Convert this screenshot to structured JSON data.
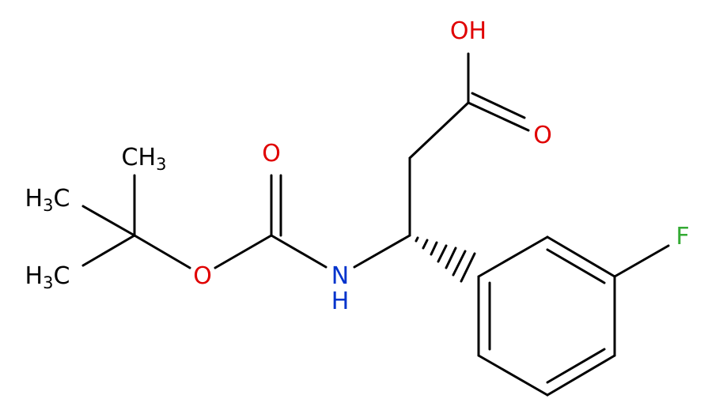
{
  "atoms": [
    {
      "parts": [
        "OH"
      ],
      "color": "#e00000"
    },
    {
      "parts": [
        "O"
      ],
      "color": "#e00000"
    },
    {
      "parts": [
        "O"
      ],
      "color": "#e00000"
    },
    {
      "parts": [
        "O"
      ],
      "color": "#e00000"
    },
    {
      "parts": [
        "N"
      ],
      "color": "#0033cc"
    },
    {
      "parts": [
        "H"
      ],
      "color": "#0033cc"
    },
    {
      "parts": [
        "F"
      ],
      "color": "#33aa33"
    },
    {
      "parts": [
        "CH",
        "3"
      ],
      "color": "#000000"
    },
    {
      "parts": [
        "H",
        "3",
        "C"
      ],
      "color": "#000000"
    },
    {
      "parts": [
        "H",
        "3",
        "C"
      ],
      "color": "#000000"
    }
  ]
}
